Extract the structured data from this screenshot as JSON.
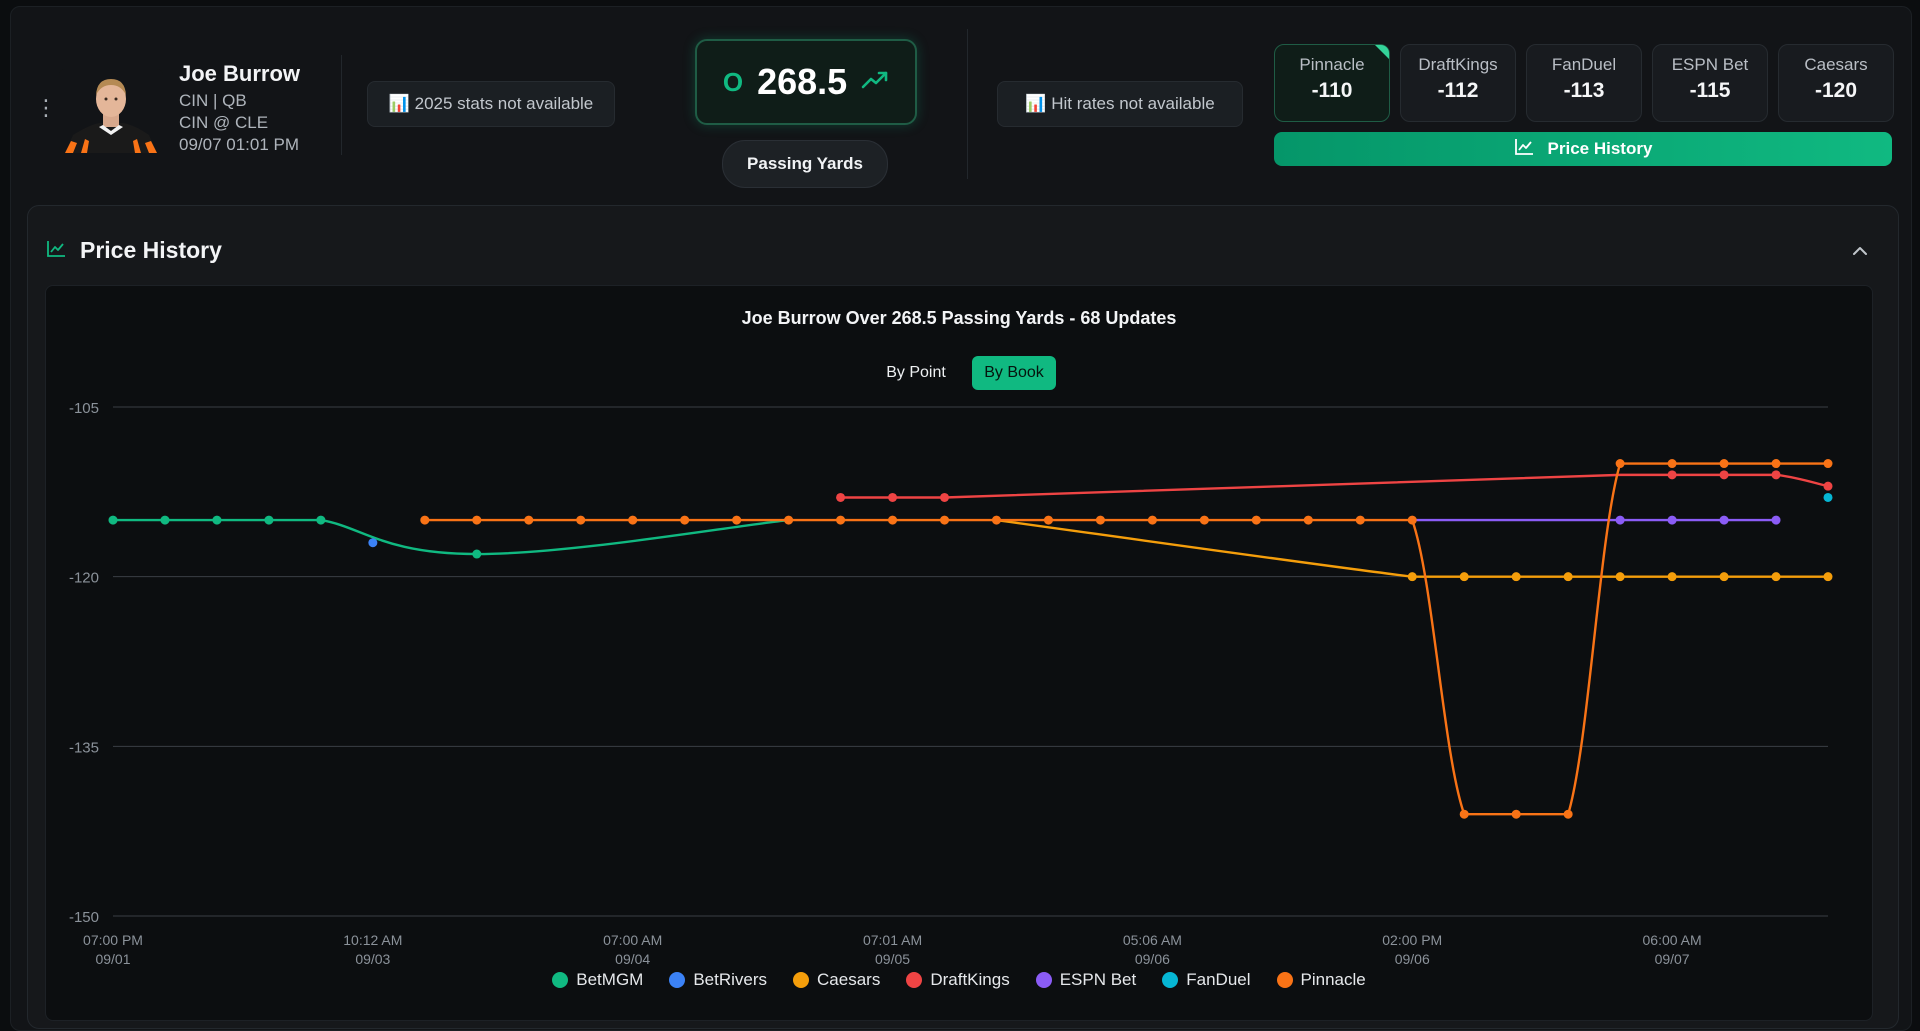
{
  "player": {
    "name": "Joe Burrow",
    "team_pos": "CIN | QB",
    "matchup": "CIN @ CLE",
    "datetime": "09/07 01:01 PM"
  },
  "stats_pill": "📊 2025 stats not available",
  "hit_rates_pill": "📊  Hit rates not available",
  "line": {
    "side": "O",
    "value": "268.5",
    "market": "Passing Yards"
  },
  "books": [
    {
      "name": "Pinnacle",
      "odds": "-110",
      "active": true
    },
    {
      "name": "DraftKings",
      "odds": "-112"
    },
    {
      "name": "FanDuel",
      "odds": "-113"
    },
    {
      "name": "ESPN Bet",
      "odds": "-115"
    },
    {
      "name": "Caesars",
      "odds": "-120"
    }
  ],
  "price_history_button": "Price History",
  "panel": {
    "title": "Price History",
    "collapse_icon": "chevron-up-icon"
  },
  "toggle": {
    "by_point": "By Point",
    "by_book": "By Book",
    "selected": "By Book"
  },
  "colors": {
    "BetMGM": "#10b981",
    "BetRivers": "#3b82f6",
    "Caesars": "#f59e0b",
    "DraftKings": "#ef4444",
    "ESPN Bet": "#8b5cf6",
    "FanDuel": "#06b6d4",
    "Pinnacle": "#f97316"
  },
  "chart_data": {
    "type": "line",
    "title": "Joe Burrow Over 268.5 Passing Yards - 68 Updates",
    "xlabel": "",
    "ylabel": "",
    "ylim": [
      -150,
      -105
    ],
    "yticks": [
      -105,
      -120,
      -135,
      -150
    ],
    "xlim": [
      0,
      33
    ],
    "xticks": [
      {
        "x": 0,
        "time": "07:00 PM",
        "date": "09/01"
      },
      {
        "x": 5,
        "time": "10:12 AM",
        "date": "09/03"
      },
      {
        "x": 10,
        "time": "07:00 AM",
        "date": "09/04"
      },
      {
        "x": 15,
        "time": "07:01 AM",
        "date": "09/05"
      },
      {
        "x": 20,
        "time": "05:06 AM",
        "date": "09/06"
      },
      {
        "x": 25,
        "time": "02:00 PM",
        "date": "09/06"
      },
      {
        "x": 30,
        "time": "06:00 AM",
        "date": "09/07"
      }
    ],
    "grid": true,
    "legend": "bottom",
    "series": [
      {
        "name": "BetMGM",
        "points": [
          [
            0,
            -115
          ],
          [
            1,
            -115
          ],
          [
            2,
            -115
          ],
          [
            3,
            -115
          ],
          [
            4,
            -115
          ],
          [
            7,
            -118
          ],
          [
            13,
            -115
          ]
        ],
        "markers": [
          0,
          1,
          2,
          3,
          4,
          5
        ]
      },
      {
        "name": "BetRivers",
        "points": [
          [
            5,
            -117
          ]
        ],
        "markers": [
          0
        ]
      },
      {
        "name": "Caesars",
        "points": [
          [
            17,
            -115
          ],
          [
            25,
            -120
          ],
          [
            26,
            -120
          ],
          [
            27,
            -120
          ],
          [
            28,
            -120
          ],
          [
            29,
            -120
          ],
          [
            30,
            -120
          ],
          [
            31,
            -120
          ],
          [
            32,
            -120
          ],
          [
            33,
            -120
          ]
        ],
        "markers": [
          1,
          2,
          3,
          4,
          5,
          6,
          7,
          8,
          9
        ]
      },
      {
        "name": "DraftKings",
        "points": [
          [
            14,
            -113
          ],
          [
            15,
            -113
          ],
          [
            16,
            -113
          ],
          [
            29,
            -111
          ],
          [
            30,
            -111
          ],
          [
            31,
            -111
          ],
          [
            32,
            -111
          ],
          [
            33,
            -112
          ]
        ],
        "markers": [
          0,
          1,
          2,
          4,
          5,
          6,
          7
        ]
      },
      {
        "name": "ESPN Bet",
        "points": [
          [
            25,
            -115
          ],
          [
            29,
            -115
          ],
          [
            30,
            -115
          ],
          [
            31,
            -115
          ],
          [
            32,
            -115
          ]
        ],
        "markers": [
          1,
          2,
          3,
          4
        ]
      },
      {
        "name": "FanDuel",
        "points": [
          [
            33,
            -113
          ]
        ],
        "markers": [
          0
        ]
      },
      {
        "name": "Pinnacle",
        "points": [
          [
            6,
            -115
          ],
          [
            7,
            -115
          ],
          [
            8,
            -115
          ],
          [
            9,
            -115
          ],
          [
            10,
            -115
          ],
          [
            11,
            -115
          ],
          [
            12,
            -115
          ],
          [
            13,
            -115
          ],
          [
            14,
            -115
          ],
          [
            15,
            -115
          ],
          [
            16,
            -115
          ],
          [
            17,
            -115
          ],
          [
            18,
            -115
          ],
          [
            19,
            -115
          ],
          [
            20,
            -115
          ],
          [
            21,
            -115
          ],
          [
            22,
            -115
          ],
          [
            23,
            -115
          ],
          [
            24,
            -115
          ],
          [
            25,
            -115
          ],
          [
            26,
            -141
          ],
          [
            27,
            -141
          ],
          [
            28,
            -141
          ],
          [
            29,
            -110
          ],
          [
            30,
            -110
          ],
          [
            31,
            -110
          ],
          [
            32,
            -110
          ],
          [
            33,
            -110
          ]
        ],
        "markers": [
          0,
          1,
          2,
          3,
          4,
          5,
          6,
          7,
          8,
          9,
          10,
          11,
          12,
          13,
          14,
          15,
          16,
          17,
          18,
          19,
          20,
          21,
          22,
          23,
          24,
          25,
          26,
          27
        ]
      }
    ]
  }
}
